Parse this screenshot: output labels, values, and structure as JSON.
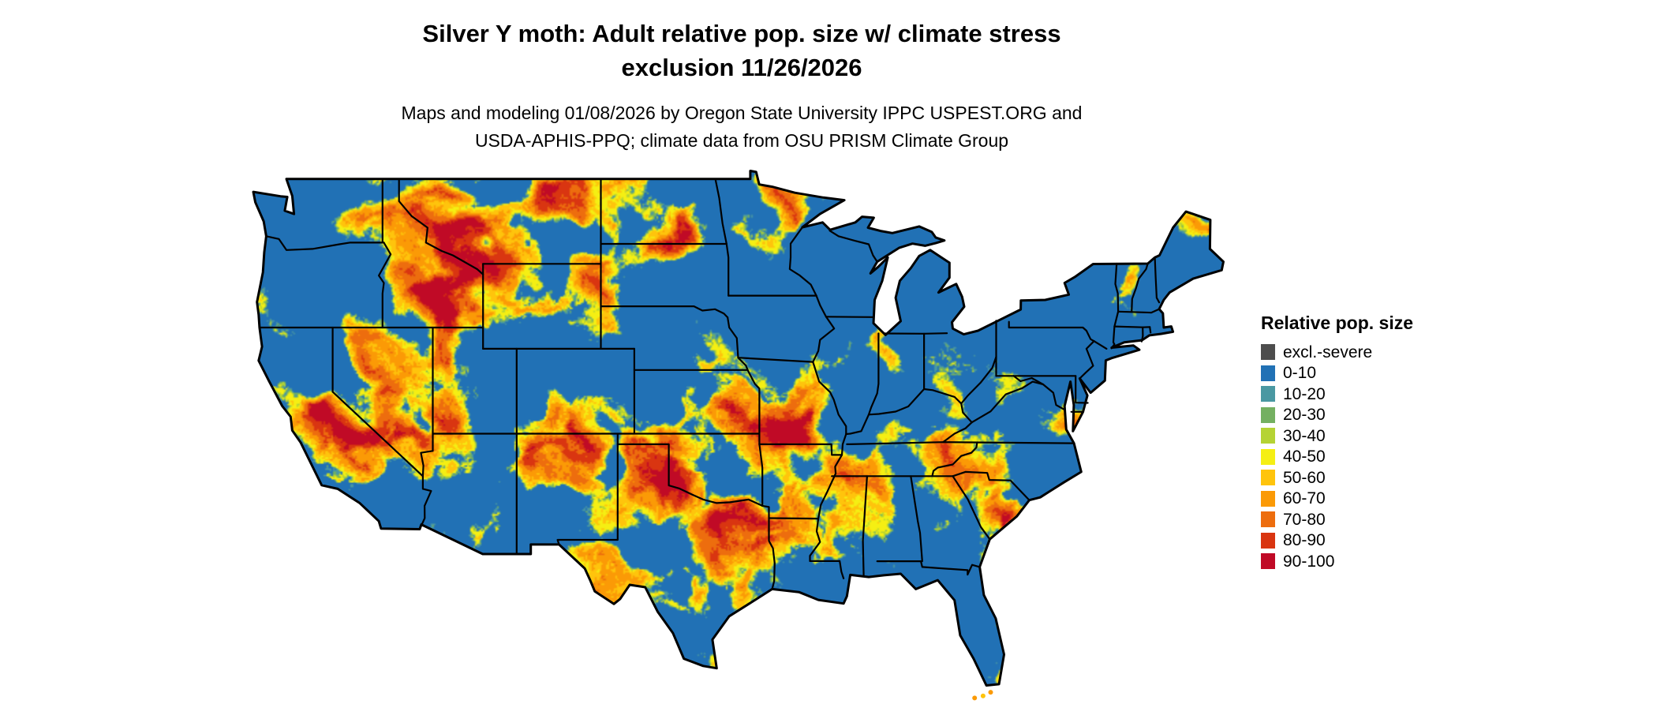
{
  "title": {
    "line1": "Silver Y moth: Adult relative pop. size w/ climate stress",
    "line2": "exclusion 11/26/2026"
  },
  "subtitle": {
    "line1": "Maps and modeling 01/08/2026 by Oregon State University IPPC USPEST.ORG and",
    "line2": "USDA-APHIS-PPQ; climate data from OSU PRISM Climate Group"
  },
  "legend": {
    "title": "Relative pop. size",
    "items": [
      {
        "label": "excl.-severe",
        "color": "#4d4d4d"
      },
      {
        "label": "0-10",
        "color": "#2171b5"
      },
      {
        "label": "10-20",
        "color": "#4a98a2"
      },
      {
        "label": "20-30",
        "color": "#74b061"
      },
      {
        "label": "30-40",
        "color": "#b5d334"
      },
      {
        "label": "40-50",
        "color": "#f5ef13"
      },
      {
        "label": "50-60",
        "color": "#ffc40c"
      },
      {
        "label": "60-70",
        "color": "#fb9a06"
      },
      {
        "label": "70-80",
        "color": "#ed6d0e"
      },
      {
        "label": "80-90",
        "color": "#d93511"
      },
      {
        "label": "90-100",
        "color": "#c00a26"
      }
    ]
  },
  "map": {
    "outline_color": "#000000"
  }
}
